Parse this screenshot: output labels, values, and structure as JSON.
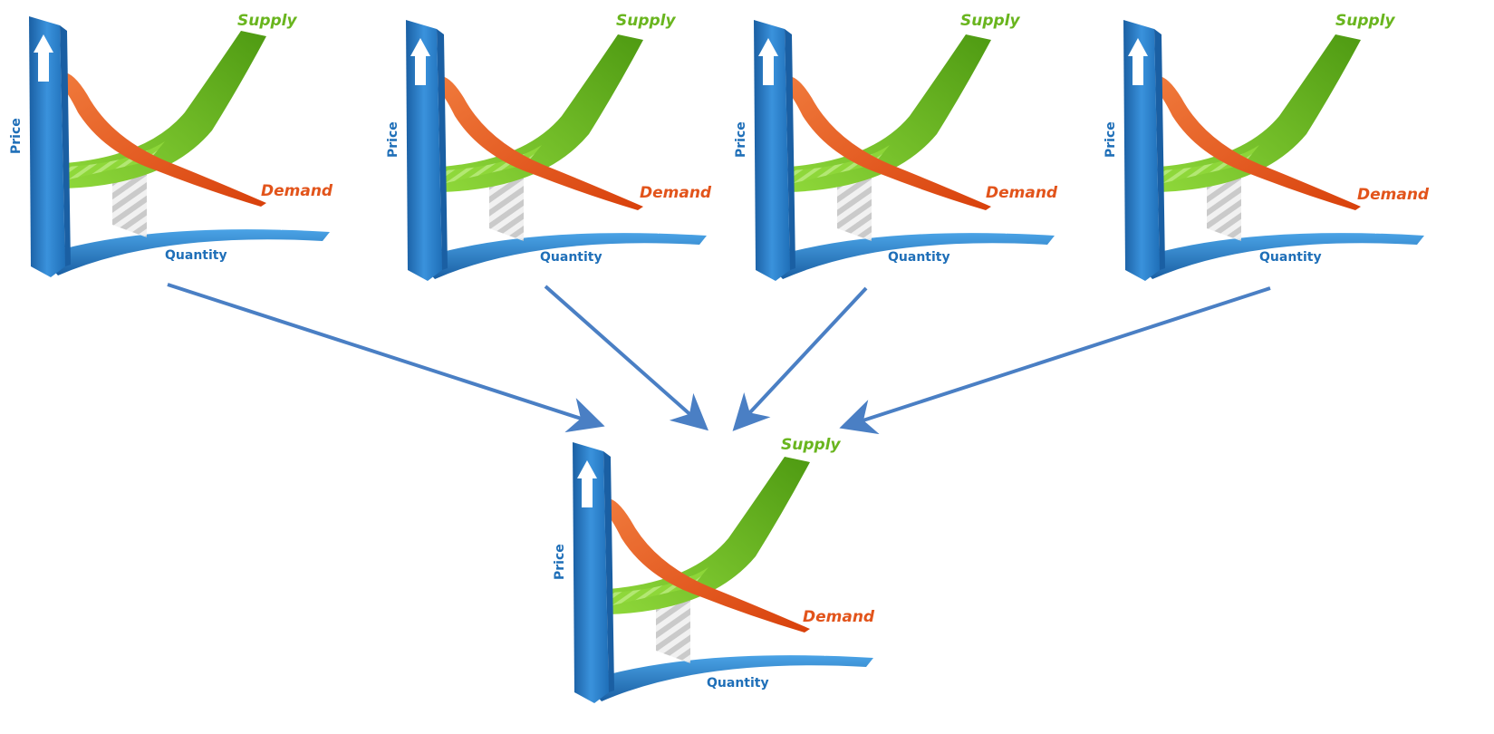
{
  "chart": {
    "labels": {
      "price": "Price",
      "quantity": "Quantity",
      "supply": "Supply",
      "demand": "Demand"
    },
    "colors": {
      "axis": "#2b7fcb",
      "axis_dark": "#1a5fa3",
      "supply": "#6cc21d",
      "supply_dark": "#4e9a12",
      "demand": "#ee5a1e",
      "demand_dark": "#c93f0c",
      "hatch": "#c4c4c4",
      "arrow": "#4a7fc4"
    },
    "icons": [
      "up-arrow-icon",
      "right-arrow-icon"
    ]
  },
  "diagram": {
    "source_charts_count": 4,
    "target_charts_count": 1
  }
}
